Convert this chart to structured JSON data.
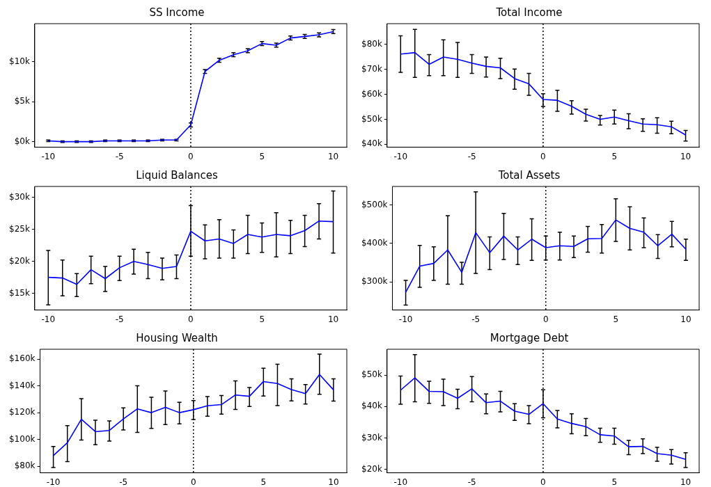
{
  "chart_data": [
    {
      "type": "line",
      "title": "SS Income",
      "x": [
        -10,
        -9,
        -8,
        -7,
        -6,
        -5,
        -4,
        -3,
        -2,
        -1,
        0,
        1,
        2,
        3,
        4,
        5,
        6,
        7,
        8,
        9,
        10
      ],
      "xlim": [
        -10.95,
        10.95
      ],
      "xticks": [
        -10,
        -5,
        0,
        5,
        10
      ],
      "ylim": [
        -700,
        14800
      ],
      "yticks": [
        {
          "value": 0,
          "label": "$0k"
        },
        {
          "value": 5000,
          "label": "$5k"
        },
        {
          "value": 10000,
          "label": "$10k"
        }
      ],
      "grid": false,
      "line_style": "solid",
      "ref_lines": [
        {
          "axis": "x",
          "value": 0,
          "label": null,
          "color": "#000000",
          "line_style": "dotted"
        }
      ],
      "series": [
        {
          "color": "#0000ff",
          "values": [
            100,
            0,
            0,
            0,
            100,
            100,
            100,
            100,
            200,
            200,
            2100,
            8800,
            10200,
            10900,
            11400,
            12300,
            12100,
            13000,
            13200,
            13400,
            13800
          ],
          "errors": [
            100,
            100,
            100,
            100,
            100,
            100,
            100,
            100,
            100,
            100,
            250,
            250,
            250,
            250,
            250,
            250,
            250,
            250,
            250,
            250,
            250
          ]
        }
      ]
    },
    {
      "type": "line",
      "title": "Total Income",
      "x": [
        -10,
        -9,
        -8,
        -7,
        -6,
        -5,
        -4,
        -3,
        -2,
        -1,
        0,
        1,
        2,
        3,
        4,
        5,
        6,
        7,
        8,
        9,
        10
      ],
      "xlim": [
        -10.95,
        10.95
      ],
      "xticks": [
        -10,
        -5,
        0,
        5,
        10
      ],
      "ylim": [
        38800,
        88300
      ],
      "yticks": [
        {
          "value": 40000,
          "label": "$40k"
        },
        {
          "value": 50000,
          "label": "$50k"
        },
        {
          "value": 60000,
          "label": "$60k"
        },
        {
          "value": 70000,
          "label": "$70k"
        },
        {
          "value": 80000,
          "label": "$80k"
        }
      ],
      "grid": false,
      "marker": "none",
      "line_style": "solid",
      "ref_lines": [
        {
          "axis": "x",
          "value": 0,
          "label": null,
          "color": "#000000",
          "line_style": "dotted"
        }
      ],
      "series": [
        {
          "color": "#0000ff",
          "values": [
            76100,
            76700,
            72000,
            74900,
            74000,
            72500,
            71200,
            70600,
            66300,
            64200,
            57900,
            57600,
            55200,
            52000,
            50000,
            50900,
            49400,
            48100,
            47800,
            47000,
            43700
          ],
          "errors": [
            [
              68800,
              83400
            ],
            [
              66800,
              86000
            ],
            [
              67500,
              75900
            ],
            [
              67500,
              81800
            ],
            [
              66800,
              80800
            ],
            [
              68400,
              75900
            ],
            [
              66900,
              74900
            ],
            [
              66300,
              74400
            ],
            [
              62000,
              70100
            ],
            [
              59600,
              68400
            ],
            [
              55100,
              60200
            ],
            [
              53200,
              61600
            ],
            [
              52100,
              57400
            ],
            [
              49300,
              54000
            ],
            [
              47700,
              51500
            ],
            [
              48100,
              53700
            ],
            [
              46200,
              52200
            ],
            [
              45200,
              50200
            ],
            [
              44400,
              50600
            ],
            [
              44200,
              49200
            ],
            [
              41300,
              45500
            ]
          ]
        }
      ]
    },
    {
      "type": "line",
      "title": "Liquid Balances",
      "x": [
        -10,
        -9,
        -8,
        -7,
        -6,
        -5,
        -4,
        -3,
        -2,
        -1,
        0,
        1,
        2,
        3,
        4,
        5,
        6,
        7,
        8,
        9,
        10
      ],
      "xlim": [
        -10.95,
        10.95
      ],
      "xticks": [
        -10,
        -5,
        0,
        5,
        10
      ],
      "ylim": [
        12400,
        31700
      ],
      "yticks": [
        {
          "value": 15000,
          "label": "$15k"
        },
        {
          "value": 20000,
          "label": "$20k"
        },
        {
          "value": 25000,
          "label": "$25k"
        },
        {
          "value": 30000,
          "label": "$30k"
        }
      ],
      "grid": false,
      "marker": "none",
      "line_style": "solid",
      "ref_lines": [
        {
          "axis": "x",
          "value": 0,
          "label": null,
          "color": "#000000",
          "line_style": "dotted"
        }
      ],
      "series": [
        {
          "color": "#0000ff",
          "values": [
            17500,
            17400,
            16400,
            18700,
            17300,
            19000,
            20000,
            19500,
            18900,
            19200,
            24700,
            23200,
            23500,
            22800,
            24200,
            23800,
            24200,
            24000,
            24800,
            26300,
            26200
          ],
          "errors": [
            [
              13200,
              21700
            ],
            [
              14600,
              20200
            ],
            [
              14500,
              18100
            ],
            [
              16500,
              20800
            ],
            [
              15300,
              19200
            ],
            [
              17000,
              20800
            ],
            [
              18000,
              21900
            ],
            [
              17300,
              21400
            ],
            [
              17100,
              20500
            ],
            [
              17300,
              21000
            ],
            [
              20800,
              28700
            ],
            [
              20400,
              25700
            ],
            [
              20500,
              26500
            ],
            [
              20500,
              24900
            ],
            [
              21200,
              27200
            ],
            [
              21400,
              26000
            ],
            [
              20700,
              27600
            ],
            [
              21200,
              26400
            ],
            [
              22300,
              27200
            ],
            [
              23500,
              29000
            ],
            [
              21300,
              31000
            ]
          ]
        }
      ]
    },
    {
      "type": "line",
      "title": "Total Assets",
      "x": [
        -10,
        -9,
        -8,
        -7,
        -6,
        -5,
        -4,
        -3,
        -2,
        -1,
        0,
        1,
        2,
        3,
        4,
        5,
        6,
        7,
        8,
        9,
        10
      ],
      "xlim": [
        -10.95,
        10.95
      ],
      "xticks": [
        -10,
        -5,
        0,
        5,
        10
      ],
      "ylim": [
        227000,
        548000
      ],
      "yticks": [
        {
          "value": 300000,
          "label": "$300k"
        },
        {
          "value": 400000,
          "label": "$400k"
        },
        {
          "value": 500000,
          "label": "$500k"
        }
      ],
      "grid": false,
      "marker": "none",
      "line_style": "solid",
      "ref_lines": [
        {
          "axis": "x",
          "value": 0,
          "label": null,
          "color": "#000000",
          "line_style": "dotted"
        }
      ],
      "series": [
        {
          "color": "#0000ff",
          "values": [
            273000,
            341000,
            348000,
            383000,
            325000,
            428000,
            376000,
            419000,
            383000,
            411000,
            389000,
            394000,
            392000,
            412000,
            413000,
            461000,
            439000,
            429000,
            394000,
            424000,
            385000
          ],
          "errors": [
            [
              240000,
              304000
            ],
            [
              286000,
              395000
            ],
            [
              304000,
              391000
            ],
            [
              294000,
              472000
            ],
            [
              294000,
              351000
            ],
            [
              322000,
              534000
            ],
            [
              332000,
              417000
            ],
            [
              358000,
              478000
            ],
            [
              345000,
              417000
            ],
            [
              356000,
              464000
            ],
            [
              357000,
              419000
            ],
            [
              357000,
              429000
            ],
            [
              363000,
              419000
            ],
            [
              377000,
              444000
            ],
            [
              375000,
              449000
            ],
            [
              405000,
              516000
            ],
            [
              383000,
              495000
            ],
            [
              389000,
              466000
            ],
            [
              361000,
              423000
            ],
            [
              391000,
              457000
            ],
            [
              356000,
              411000
            ]
          ]
        }
      ]
    },
    {
      "type": "line",
      "title": "Housing Wealth",
      "x": [
        -10,
        -9,
        -8,
        -7,
        -6,
        -5,
        -4,
        -3,
        -2,
        -1,
        0,
        1,
        2,
        3,
        4,
        5,
        6,
        7,
        8,
        9,
        10
      ],
      "xlim": [
        -10.95,
        10.95
      ],
      "xticks": [
        -10,
        -5,
        0,
        5,
        10
      ],
      "ylim": [
        75100,
        167300
      ],
      "yticks": [
        {
          "value": 80000,
          "label": "$80k"
        },
        {
          "value": 100000,
          "label": "$100k"
        },
        {
          "value": 120000,
          "label": "$120k"
        },
        {
          "value": 140000,
          "label": "$140k"
        },
        {
          "value": 160000,
          "label": "$160k"
        }
      ],
      "grid": false,
      "marker": "none",
      "line_style": "solid",
      "ref_lines": [
        {
          "axis": "x",
          "value": 0,
          "label": null,
          "color": "#000000",
          "line_style": "dotted"
        }
      ],
      "series": [
        {
          "color": "#0000ff",
          "values": [
            87900,
            97500,
            115100,
            105800,
            106700,
            115300,
            122800,
            120000,
            124000,
            120000,
            122200,
            125100,
            126000,
            133200,
            132200,
            143200,
            141700,
            137200,
            134200,
            148500,
            137000
          ],
          "errors": [
            [
              79100,
              94800
            ],
            [
              83500,
              110300
            ],
            [
              99500,
              130400
            ],
            [
              96100,
              114400
            ],
            [
              98800,
              113800
            ],
            [
              107100,
              123500
            ],
            [
              105300,
              140100
            ],
            [
              108300,
              131500
            ],
            [
              111100,
              136100
            ],
            [
              111600,
              127700
            ],
            [
              114900,
              129000
            ],
            [
              117300,
              132000
            ],
            [
              118900,
              132800
            ],
            [
              122400,
              143700
            ],
            [
              124600,
              138800
            ],
            [
              132400,
              153200
            ],
            [
              125300,
              156200
            ],
            [
              128800,
              145200
            ],
            [
              126400,
              141000
            ],
            [
              133700,
              163700
            ],
            [
              128600,
              145200
            ]
          ]
        }
      ]
    },
    {
      "type": "line",
      "title": "Mortgage Debt",
      "x": [
        -10,
        -9,
        -8,
        -7,
        -6,
        -5,
        -4,
        -3,
        -2,
        -1,
        0,
        1,
        2,
        3,
        4,
        5,
        6,
        7,
        8,
        9,
        10
      ],
      "xlim": [
        -10.95,
        10.95
      ],
      "xticks": [
        -10,
        -5,
        0,
        5,
        10
      ],
      "ylim": [
        18900,
        58200
      ],
      "yticks": [
        {
          "value": 20000,
          "label": "$20k"
        },
        {
          "value": 30000,
          "label": "$30k"
        },
        {
          "value": 40000,
          "label": "$40k"
        },
        {
          "value": 50000,
          "label": "$50k"
        }
      ],
      "grid": false,
      "marker": "none",
      "line_style": "solid",
      "ref_lines": [
        {
          "axis": "x",
          "value": 0,
          "label": null,
          "color": "#000000",
          "line_style": "dotted"
        }
      ],
      "series": [
        {
          "color": "#0000ff",
          "values": [
            45200,
            49100,
            44800,
            44700,
            42600,
            45600,
            41200,
            41700,
            38500,
            37500,
            40900,
            36000,
            34600,
            33600,
            31000,
            30600,
            27200,
            27300,
            25000,
            24500,
            23200
          ],
          "errors": [
            [
              40700,
              49700
            ],
            [
              41500,
              56500
            ],
            [
              41000,
              48000
            ],
            [
              40300,
              48700
            ],
            [
              39300,
              45500
            ],
            [
              41500,
              49500
            ],
            [
              37700,
              44000
            ],
            [
              38300,
              44800
            ],
            [
              35600,
              40900
            ],
            [
              34500,
              40300
            ],
            [
              36400,
              45300
            ],
            [
              33200,
              38700
            ],
            [
              31300,
              37700
            ],
            [
              30700,
              36200
            ],
            [
              28600,
              33100
            ],
            [
              28000,
              33100
            ],
            [
              24700,
              29200
            ],
            [
              25000,
              29700
            ],
            [
              22600,
              27000
            ],
            [
              21700,
              26300
            ],
            [
              20600,
              25300
            ]
          ]
        }
      ]
    }
  ]
}
